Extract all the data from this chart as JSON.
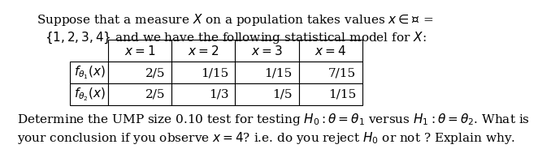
{
  "title_line1": "Suppose that a measure $X$ on a population takes values $x \\in \\mathcal{X}$ =",
  "title_line2": "$\\{1, 2, 3, 4\\}$ and we have the following statistical model for $X$:",
  "col_headers": [
    "$x=1$",
    "$x=2$",
    "$x=3$",
    "$x=4$"
  ],
  "row_headers": [
    "$f_{\\theta_1}(x)$",
    "$f_{\\theta_2}(x)$"
  ],
  "table_data": [
    [
      "2/5",
      "1/15",
      "1/15",
      "7/15"
    ],
    [
      "2/5",
      "1/3",
      "1/5",
      "1/15"
    ]
  ],
  "bottom_line1": "Determine the UMP size 0.10 test for testing $H_0 : \\theta = \\theta_1$ versus $H_1 : \\theta = \\theta_2$. What is",
  "bottom_line2": "your conclusion if you observe $x = 4$? i.e. do you reject $H_0$ or not ? Explain why.",
  "bg_color": "#ffffff",
  "text_color": "#000000",
  "font_size": 11,
  "table_font_size": 11
}
